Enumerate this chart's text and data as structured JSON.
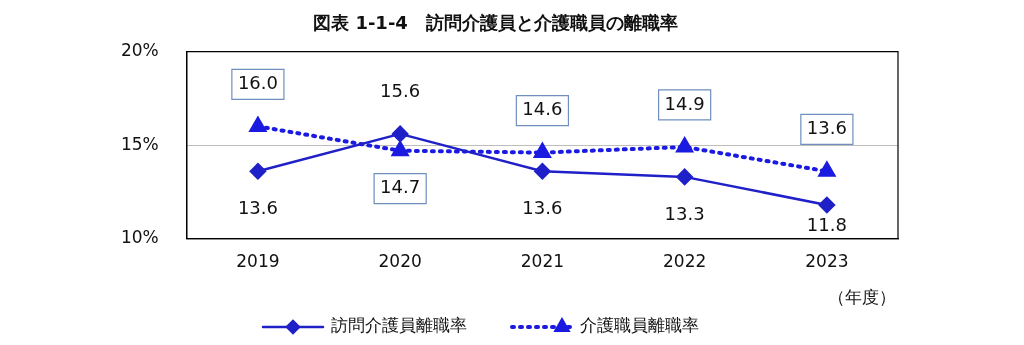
{
  "chart_data": {
    "type": "line",
    "title": "図表 1-1-4　訪問介護員と介護職員の離職率",
    "xlabel": "（年度）",
    "categories": [
      "2019",
      "2020",
      "2021",
      "2022",
      "2023"
    ],
    "series": [
      {
        "name": "訪問介護員離職率",
        "color": "#2020c8",
        "values": [
          13.6,
          15.6,
          13.6,
          13.3,
          11.8
        ],
        "value_labels": [
          "13.6",
          "15.6",
          "13.6",
          "13.3",
          "11.8"
        ],
        "marker": "diamond",
        "line_style": "solid"
      },
      {
        "name": "介護職員離職率",
        "color": "#1a1ae0",
        "values": [
          16.0,
          14.7,
          14.6,
          14.9,
          13.6
        ],
        "value_labels": [
          "16.0",
          "14.7",
          "14.6",
          "14.9",
          "13.6"
        ],
        "marker": "triangle",
        "line_style": "dotted"
      }
    ],
    "ylim": [
      10,
      20
    ],
    "yticks": [
      {
        "value": 10,
        "label": "10%"
      },
      {
        "value": 15,
        "label": "15%"
      },
      {
        "value": 20,
        "label": "20%"
      }
    ],
    "grid": "y",
    "legend": "bottom"
  }
}
